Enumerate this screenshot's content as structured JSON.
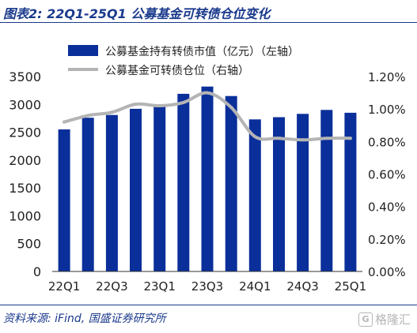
{
  "title": "图表2: 22Q1-25Q1 公募基金可转债仓位变化",
  "source": "资料来源: iFind, 国盛证券研究所",
  "watermark": {
    "text": "格隆汇",
    "icon": "G"
  },
  "chart_data": {
    "type": "bar",
    "categories": [
      "22Q1",
      "22Q2",
      "22Q3",
      "22Q4",
      "23Q1",
      "23Q2",
      "23Q3",
      "23Q4",
      "24Q1",
      "24Q2",
      "24Q3",
      "24Q4",
      "25Q1"
    ],
    "x_tick_labels": [
      "22Q1",
      "22Q3",
      "23Q1",
      "23Q3",
      "24Q1",
      "24Q3",
      "25Q1"
    ],
    "series": [
      {
        "name": "公募基金持有转债市值（亿元）（左轴）",
        "type": "bar",
        "axis": "left",
        "color": "#0a2f9a",
        "values": [
          2550,
          2760,
          2810,
          2920,
          2960,
          3190,
          3320,
          3150,
          2730,
          2770,
          2830,
          2900,
          2850
        ]
      },
      {
        "name": "公募基金可转债仓位（右轴）",
        "type": "line",
        "axis": "right",
        "color": "#b4b4b4",
        "values": [
          0.92,
          0.96,
          0.98,
          1.03,
          1.02,
          1.04,
          1.1,
          1.01,
          0.83,
          0.82,
          0.81,
          0.82,
          0.82
        ]
      }
    ],
    "y_left": {
      "min": 0,
      "max": 3500,
      "step": 500,
      "tick_labels": [
        "0",
        "500",
        "1000",
        "1500",
        "2000",
        "2500",
        "3000",
        "3500"
      ]
    },
    "y_right": {
      "min": 0,
      "max": 1.2,
      "step": 0.2,
      "tick_labels": [
        "0.00%",
        "0.20%",
        "0.40%",
        "0.60%",
        "0.80%",
        "1.00%",
        "1.20%"
      ]
    },
    "legend_position": "top-center",
    "grid": false
  }
}
